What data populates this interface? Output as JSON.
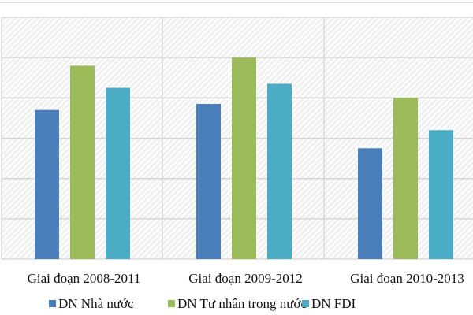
{
  "chart_data": {
    "type": "bar",
    "title": "",
    "xlabel": "",
    "ylabel": "",
    "categories": [
      "Giai đoạn 2008-2011",
      "Giai đoạn 2009-2012",
      "Giai đoạn 2010-2013"
    ],
    "series": [
      {
        "name": "DN Nhà nước",
        "color": "#4a7ebb",
        "values": [
          3.7,
          3.85,
          2.75
        ]
      },
      {
        "name": "DN  Tư nhân trong nước",
        "color": "#9bbb59",
        "values": [
          4.8,
          5.0,
          4.0
        ]
      },
      {
        "name": "DN FDI",
        "color": "#4bacc6",
        "values": [
          4.25,
          4.35,
          3.2
        ]
      }
    ],
    "ylim": [
      0,
      6
    ],
    "grid": true,
    "legend_position": "bottom"
  }
}
